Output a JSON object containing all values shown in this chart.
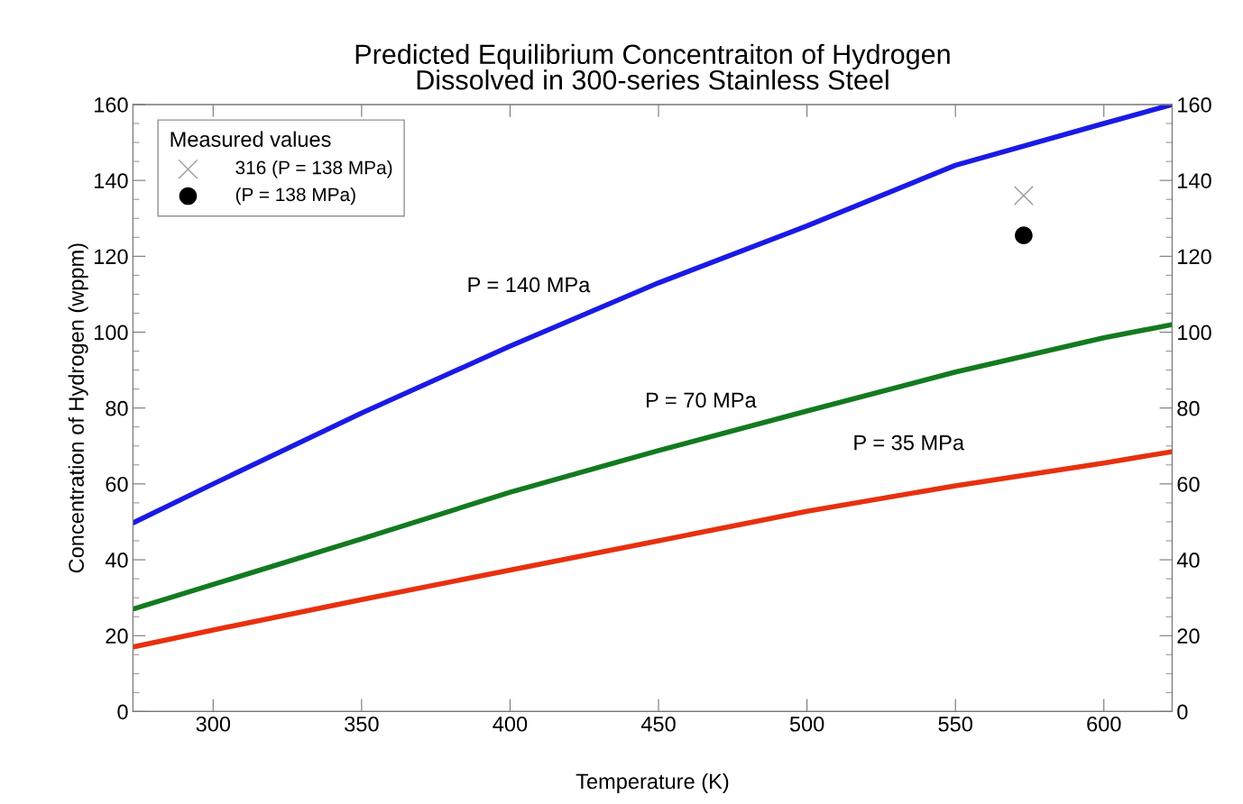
{
  "chart_data": {
    "type": "line",
    "title": "Predicted Equilibrium Concentraiton of Hydrogen\nDissolved in 300-series Stainless Steel",
    "xlabel": "Temperature (K)",
    "ylabel": "Concentration of Hydrogen (wppm)",
    "x": [
      273,
      300,
      350,
      400,
      450,
      500,
      550,
      600,
      623
    ],
    "series": [
      {
        "name": "P = 140 MPa",
        "color": "#1a1ae6",
        "values": [
          49.7,
          60,
          78.7,
          96.3,
          113,
          128,
          144,
          155,
          160
        ]
      },
      {
        "name": "P = 70 MPa",
        "color": "#137a1f",
        "values": [
          27,
          33.5,
          45.5,
          57.8,
          68.8,
          79.2,
          89.5,
          98.5,
          102
        ]
      },
      {
        "name": "P = 35 MPa",
        "color": "#e8300f",
        "values": [
          17,
          21.5,
          29.5,
          37.3,
          45,
          52.8,
          59.5,
          65.5,
          68.5
        ]
      },
      {
        "name": "316 (P = 138 MPa)",
        "type": "scatter",
        "marker": "cross",
        "color": "#999999",
        "x": [
          573
        ],
        "values": [
          136
        ]
      },
      {
        "name": "(P = 138 MPa)",
        "type": "scatter",
        "marker": "circle",
        "color": "#000000",
        "x": [
          573
        ],
        "values": [
          125.5
        ]
      }
    ],
    "legend": "top left",
    "legend_title": "Measured values",
    "xlim": [
      273,
      623
    ],
    "xticks": [
      300,
      350,
      400,
      450,
      500,
      550,
      600
    ],
    "ylim": [
      0,
      160
    ],
    "yticks": [
      0,
      20,
      40,
      60,
      80,
      100,
      120,
      140,
      160
    ],
    "y2lim": [
      0,
      160
    ],
    "y2ticks": [
      0,
      20,
      40,
      60,
      80,
      100,
      120,
      140,
      160
    ],
    "grid": false
  }
}
